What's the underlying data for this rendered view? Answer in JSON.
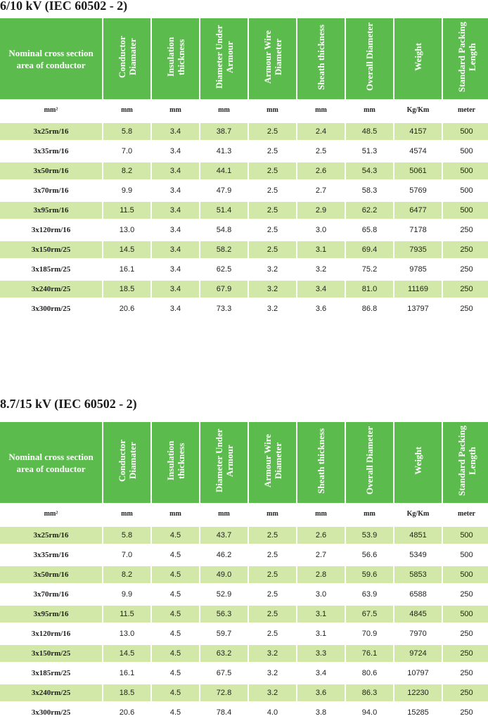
{
  "headers": {
    "first": "Nominal cross section area of conductor",
    "cols": [
      "Conductor Diamater",
      "Insulation thickness",
      "Diameter Under Armour",
      "Armour Wire Diameter",
      "Sheath thickness",
      "Overall Diameter",
      "Weight",
      "Standard Packing Length"
    ]
  },
  "units": [
    "mm²",
    "mm",
    "mm",
    "mm",
    "mm",
    "mm",
    "mm",
    "Kg/Km",
    "meter"
  ],
  "sections": [
    {
      "title": "6/10 kV (IEC 60502 - 2)",
      "rows": [
        [
          "3x25rm/16",
          "5.8",
          "3.4",
          "38.7",
          "2.5",
          "2.4",
          "48.5",
          "4157",
          "500"
        ],
        [
          "3x35rm/16",
          "7.0",
          "3.4",
          "41.3",
          "2.5",
          "2.5",
          "51.3",
          "4574",
          "500"
        ],
        [
          "3x50rm/16",
          "8.2",
          "3.4",
          "44.1",
          "2.5",
          "2.6",
          "54.3",
          "5061",
          "500"
        ],
        [
          "3x70rm/16",
          "9.9",
          "3.4",
          "47.9",
          "2.5",
          "2.7",
          "58.3",
          "5769",
          "500"
        ],
        [
          "3x95rm/16",
          "11.5",
          "3.4",
          "51.4",
          "2.5",
          "2.9",
          "62.2",
          "6477",
          "500"
        ],
        [
          "3x120rm/16",
          "13.0",
          "3.4",
          "54.8",
          "2.5",
          "3.0",
          "65.8",
          "7178",
          "250"
        ],
        [
          "3x150rm/25",
          "14.5",
          "3.4",
          "58.2",
          "2.5",
          "3.1",
          "69.4",
          "7935",
          "250"
        ],
        [
          "3x185rm/25",
          "16.1",
          "3.4",
          "62.5",
          "3.2",
          "3.2",
          "75.2",
          "9785",
          "250"
        ],
        [
          "3x240rm/25",
          "18.5",
          "3.4",
          "67.9",
          "3.2",
          "3.4",
          "81.0",
          "11169",
          "250"
        ],
        [
          "3x300rm/25",
          "20.6",
          "3.4",
          "73.3",
          "3.2",
          "3.6",
          "86.8",
          "13797",
          "250"
        ]
      ]
    },
    {
      "title": "8.7/15 kV (IEC 60502 - 2)",
      "rows": [
        [
          "3x25rm/16",
          "5.8",
          "4.5",
          "43.7",
          "2.5",
          "2.6",
          "53.9",
          "4851",
          "500"
        ],
        [
          "3x35rm/16",
          "7.0",
          "4.5",
          "46.2",
          "2.5",
          "2.7",
          "56.6",
          "5349",
          "500"
        ],
        [
          "3x50rm/16",
          "8.2",
          "4.5",
          "49.0",
          "2.5",
          "2.8",
          "59.6",
          "5853",
          "500"
        ],
        [
          "3x70rm/16",
          "9.9",
          "4.5",
          "52.9",
          "2.5",
          "3.0",
          "63.9",
          "6588",
          "250"
        ],
        [
          "3x95rm/16",
          "11.5",
          "4.5",
          "56.3",
          "2.5",
          "3.1",
          "67.5",
          "4845",
          "500"
        ],
        [
          "3x120rm/16",
          "13.0",
          "4.5",
          "59.7",
          "2.5",
          "3.1",
          "70.9",
          "7970",
          "250"
        ],
        [
          "3x150rm/25",
          "14.5",
          "4.5",
          "63.2",
          "3.2",
          "3.3",
          "76.1",
          "9724",
          "250"
        ],
        [
          "3x185rm/25",
          "16.1",
          "4.5",
          "67.5",
          "3.2",
          "3.4",
          "80.6",
          "10797",
          "250"
        ],
        [
          "3x240rm/25",
          "18.5",
          "4.5",
          "72.8",
          "3.2",
          "3.6",
          "86.3",
          "12230",
          "250"
        ],
        [
          "3x300rm/25",
          "20.6",
          "4.5",
          "78.4",
          "4.0",
          "3.8",
          "94.0",
          "15285",
          "250"
        ]
      ]
    }
  ]
}
